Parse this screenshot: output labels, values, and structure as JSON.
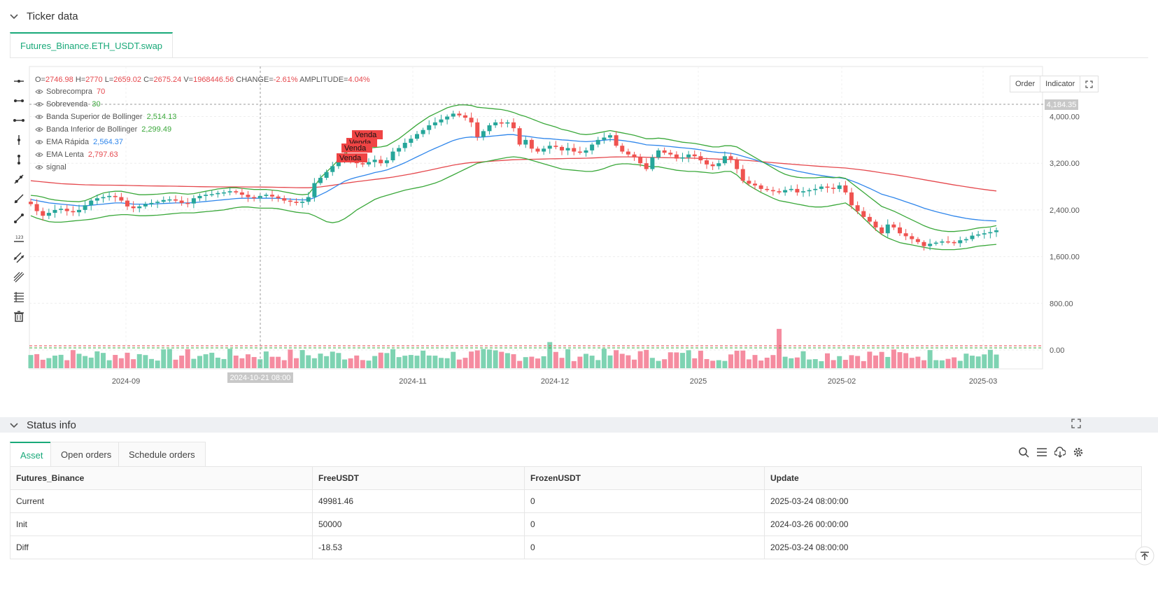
{
  "ticker": {
    "title": "Ticker data",
    "tab_label": "Futures_Binance.ETH_USDT.swap",
    "ohlc": {
      "o_label": "O=",
      "o": "2746.98",
      "h_label": "H=",
      "h": "2770",
      "l_label": "L=",
      "l": "2659.02",
      "c_label": "C=",
      "c": "2675.24",
      "v_label": "V=",
      "v": "1968446.56",
      "change_label": "CHANGE=",
      "change": "-2.61%",
      "amp_label": "AMPLITUDE=",
      "amp": "4.04%"
    },
    "legend": [
      {
        "name": "Sobrecompra",
        "value": "70",
        "color": "#e5484d"
      },
      {
        "name": "Sobrevenda",
        "value": "30",
        "color": "#3aa83a"
      },
      {
        "name": "Banda Superior de Bollinger",
        "value": "2,514.13",
        "color": "#3aa83a"
      },
      {
        "name": "Banda Inferior de Bollinger",
        "value": "2,299.49",
        "color": "#3aa83a"
      },
      {
        "name": "EMA Rápida",
        "value": "2,564.37",
        "color": "#2f86eb"
      },
      {
        "name": "EMA Lenta",
        "value": "2,797.63",
        "color": "#e5484d"
      },
      {
        "name": "signal",
        "value": "",
        "color": "#555555"
      }
    ],
    "buttons": {
      "order": "Order",
      "indicator": "Indicator"
    },
    "crosshair_time": "2024-10-21 08:00",
    "last_price_tag": "4,184.35"
  },
  "chart_data": {
    "type": "candlestick",
    "y_ticks": [
      "4,000.00",
      "3,200.00",
      "2,400.00",
      "1,600.00",
      "800.00",
      "0.00"
    ],
    "x_ticks": [
      "2024-09",
      "2024-11",
      "2024-12",
      "2025",
      "2025-02",
      "2025-03"
    ],
    "ylim": [
      0,
      4200
    ],
    "annotations": [
      "Venda",
      "Venda",
      "Venda",
      "Venda"
    ],
    "closes": [
      2500,
      2380,
      2300,
      2350,
      2400,
      2420,
      2380,
      2360,
      2400,
      2480,
      2560,
      2600,
      2620,
      2640,
      2620,
      2560,
      2460,
      2430,
      2460,
      2500,
      2520,
      2540,
      2570,
      2580,
      2560,
      2520,
      2510,
      2600,
      2640,
      2660,
      2670,
      2690,
      2700,
      2720,
      2700,
      2660,
      2620,
      2600,
      2640,
      2660,
      2630,
      2600,
      2560,
      2540,
      2520,
      2540,
      2620,
      2860,
      2950,
      3050,
      3150,
      3250,
      3330,
      3280,
      3200,
      3180,
      3220,
      3260,
      3200,
      3250,
      3400,
      3460,
      3550,
      3620,
      3700,
      3770,
      3850,
      3900,
      3950,
      4000,
      4050,
      4020,
      3980,
      3900,
      3650,
      3750,
      3850,
      3900,
      3880,
      3900,
      3800,
      3520,
      3600,
      3450,
      3400,
      3450,
      3500,
      3480,
      3420,
      3460,
      3400,
      3380,
      3420,
      3520,
      3600,
      3640,
      3680,
      3500,
      3400,
      3350,
      3300,
      3200,
      3100,
      3300,
      3420,
      3380,
      3350,
      3280,
      3300,
      3350,
      3320,
      3250,
      3180,
      3150,
      3200,
      3320,
      3260,
      3100,
      2900,
      2850,
      2820,
      2760,
      2740,
      2720,
      2700,
      2740,
      2760,
      2700,
      2720,
      2740,
      2760,
      2800,
      2780,
      2760,
      2820,
      2700,
      2480,
      2380,
      2280,
      2200,
      2100,
      2000,
      2150,
      2100,
      2000,
      1950,
      1900,
      1850,
      1780,
      1820,
      1840,
      1860,
      1850,
      1830,
      1880,
      1900,
      1960,
      1980,
      2000,
      2020,
      2050
    ],
    "ema_fast": [
      2580,
      2560,
      2540,
      2520,
      2510,
      2500,
      2490,
      2480,
      2470,
      2470,
      2480,
      2490,
      2500,
      2510,
      2520,
      2520,
      2510,
      2500,
      2500,
      2500,
      2500,
      2505,
      2510,
      2515,
      2520,
      2520,
      2520,
      2525,
      2535,
      2545,
      2555,
      2565,
      2575,
      2585,
      2595,
      2600,
      2600,
      2600,
      2600,
      2600,
      2600,
      2598,
      2592,
      2585,
      2578,
      2572,
      2575,
      2610,
      2660,
      2710,
      2770,
      2830,
      2890,
      2930,
      2960,
      2985,
      3010,
      3040,
      3060,
      3085,
      3125,
      3165,
      3210,
      3260,
      3310,
      3360,
      3410,
      3455,
      3500,
      3545,
      3590,
      3620,
      3640,
      3650,
      3645,
      3650,
      3660,
      3670,
      3680,
      3690,
      3690,
      3670,
      3665,
      3650,
      3635,
      3625,
      3620,
      3610,
      3600,
      3595,
      3585,
      3575,
      3570,
      3575,
      3585,
      3595,
      3605,
      3600,
      3590,
      3575,
      3560,
      3540,
      3515,
      3510,
      3505,
      3495,
      3485,
      3475,
      3465,
      3455,
      3445,
      3430,
      3410,
      3395,
      3385,
      3380,
      3370,
      3350,
      3320,
      3290,
      3260,
      3225,
      3195,
      3165,
      3135,
      3110,
      3090,
      3065,
      3045,
      3025,
      3005,
      2990,
      2975,
      2960,
      2950,
      2935,
      2900,
      2860,
      2815,
      2770,
      2720,
      2670,
      2640,
      2610,
      2575,
      2540,
      2505,
      2470,
      2430,
      2400,
      2370,
      2345,
      2320,
      2295,
      2275,
      2255,
      2240,
      2230,
      2220,
      2215,
      2210
    ],
    "ema_slow": [
      2900,
      2890,
      2880,
      2870,
      2860,
      2850,
      2845,
      2840,
      2835,
      2830,
      2828,
      2826,
      2825,
      2824,
      2823,
      2822,
      2820,
      2817,
      2815,
      2813,
      2811,
      2810,
      2809,
      2808,
      2806,
      2804,
      2802,
      2800,
      2798,
      2797,
      2796,
      2795,
      2795,
      2795,
      2795,
      2795,
      2794,
      2793,
      2792,
      2791,
      2790,
      2788,
      2786,
      2784,
      2782,
      2780,
      2780,
      2785,
      2795,
      2808,
      2822,
      2838,
      2855,
      2870,
      2884,
      2897,
      2910,
      2923,
      2935,
      2948,
      2963,
      2980,
      2998,
      3017,
      3037,
      3058,
      3080,
      3102,
      3124,
      3146,
      3168,
      3185,
      3200,
      3212,
      3218,
      3225,
      3232,
      3240,
      3247,
      3254,
      3260,
      3262,
      3266,
      3268,
      3270,
      3272,
      3275,
      3277,
      3279,
      3281,
      3283,
      3284,
      3286,
      3290,
      3295,
      3300,
      3306,
      3308,
      3309,
      3309,
      3308,
      3306,
      3302,
      3300,
      3298,
      3296,
      3294,
      3292,
      3290,
      3288,
      3286,
      3283,
      3279,
      3275,
      3271,
      3268,
      3265,
      3260,
      3252,
      3245,
      3237,
      3228,
      3219,
      3210,
      3201,
      3193,
      3185,
      3176,
      3168,
      3160,
      3152,
      3145,
      3138,
      3131,
      3125,
      3118,
      3107,
      3095,
      3082,
      3068,
      3053,
      3036,
      3021,
      3006,
      2990,
      2973,
      2955,
      2937,
      2918,
      2900,
      2882,
      2864,
      2846,
      2828,
      2812,
      2796,
      2780,
      2765,
      2750,
      2737,
      2725
    ],
    "bb_upper": [
      2650,
      2640,
      2620,
      2590,
      2570,
      2560,
      2550,
      2545,
      2540,
      2560,
      2600,
      2650,
      2690,
      2710,
      2720,
      2720,
      2700,
      2680,
      2660,
      2660,
      2665,
      2670,
      2680,
      2690,
      2690,
      2680,
      2670,
      2680,
      2700,
      2720,
      2740,
      2760,
      2770,
      2780,
      2780,
      2770,
      2760,
      2750,
      2750,
      2750,
      2740,
      2730,
      2710,
      2690,
      2670,
      2660,
      2670,
      2800,
      2950,
      3050,
      3150,
      3260,
      3360,
      3420,
      3440,
      3450,
      3460,
      3470,
      3480,
      3500,
      3560,
      3620,
      3700,
      3780,
      3860,
      3930,
      4000,
      4050,
      4100,
      4150,
      4180,
      4200,
      4200,
      4190,
      4160,
      4150,
      4140,
      4130,
      4120,
      4100,
      4070,
      4030,
      4000,
      3960,
      3920,
      3880,
      3850,
      3820,
      3780,
      3760,
      3730,
      3700,
      3690,
      3700,
      3720,
      3740,
      3760,
      3740,
      3720,
      3700,
      3680,
      3650,
      3620,
      3620,
      3630,
      3620,
      3600,
      3580,
      3560,
      3550,
      3540,
      3520,
      3500,
      3480,
      3480,
      3500,
      3500,
      3480,
      3420,
      3360,
      3300,
      3240,
      3180,
      3120,
      3060,
      3010,
      2980,
      2960,
      2950,
      2950,
      2950,
      2960,
      2960,
      2950,
      2960,
      2940,
      2860,
      2780,
      2700,
      2620,
      2540,
      2460,
      2420,
      2380,
      2330,
      2280,
      2230,
      2180,
      2130,
      2090,
      2060,
      2040,
      2030,
      2030,
      2040,
      2050,
      2070,
      2090,
      2100,
      2110,
      2130
    ],
    "bb_lower": [
      2300,
      2260,
      2230,
      2200,
      2190,
      2190,
      2200,
      2210,
      2220,
      2230,
      2240,
      2260,
      2280,
      2300,
      2310,
      2320,
      2320,
      2310,
      2300,
      2300,
      2305,
      2310,
      2320,
      2330,
      2340,
      2350,
      2350,
      2350,
      2360,
      2370,
      2380,
      2390,
      2400,
      2420,
      2440,
      2450,
      2450,
      2440,
      2430,
      2430,
      2430,
      2420,
      2400,
      2380,
      2360,
      2350,
      2340,
      2300,
      2250,
      2200,
      2180,
      2200,
      2250,
      2320,
      2400,
      2460,
      2520,
      2580,
      2620,
      2650,
      2680,
      2710,
      2740,
      2760,
      2780,
      2800,
      2830,
      2860,
      2900,
      2950,
      3000,
      3050,
      3100,
      3150,
      3200,
      3220,
      3240,
      3260,
      3280,
      3300,
      3310,
      3300,
      3280,
      3250,
      3220,
      3190,
      3160,
      3130,
      3100,
      3090,
      3080,
      3070,
      3060,
      3060,
      3080,
      3110,
      3150,
      3180,
      3190,
      3190,
      3180,
      3170,
      3150,
      3140,
      3140,
      3120,
      3100,
      3080,
      3070,
      3060,
      3060,
      3050,
      3040,
      3030,
      3040,
      3060,
      3060,
      3000,
      2900,
      2820,
      2760,
      2700,
      2650,
      2600,
      2560,
      2540,
      2520,
      2500,
      2480,
      2460,
      2450,
      2450,
      2460,
      2480,
      2500,
      2520,
      2450,
      2360,
      2260,
      2160,
      2060,
      1980,
      1920,
      1880,
      1840,
      1820,
      1800,
      1780,
      1760,
      1740,
      1730,
      1720,
      1720,
      1720,
      1730,
      1740,
      1760,
      1780,
      1790,
      1800,
      1810
    ]
  },
  "status": {
    "title": "Status info",
    "tabs": [
      "Asset",
      "Open orders",
      "Schedule orders"
    ],
    "columns": [
      "Futures_Binance",
      "FreeUSDT",
      "FrozenUSDT",
      "Update"
    ],
    "rows": [
      {
        "name": "Current",
        "free": "49981.46",
        "frozen": "0",
        "update": "2025-03-24 08:00:00"
      },
      {
        "name": "Init",
        "free": "50000",
        "frozen": "0",
        "update": "2024-03-26 00:00:00"
      },
      {
        "name": "Diff",
        "free": "-18.53",
        "frozen": "0",
        "update": "2025-03-24 08:00:00"
      }
    ]
  },
  "colors": {
    "up": "#26a69a",
    "down": "#ef5350",
    "accent": "#19a979",
    "ema_fast": "#2f86eb",
    "ema_slow": "#e5484d",
    "bb": "#3aa83a"
  }
}
